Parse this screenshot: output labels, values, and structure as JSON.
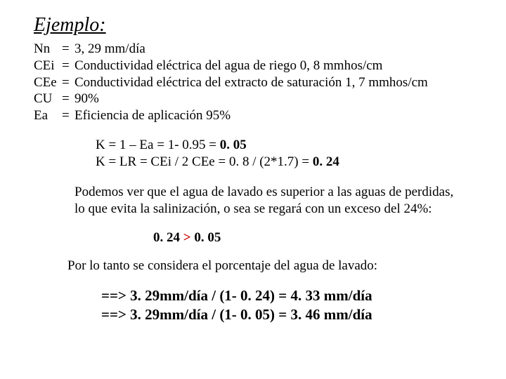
{
  "title": "Ejemplo:",
  "defs": [
    {
      "sym": "Nn",
      "val": "3, 29 mm/día"
    },
    {
      "sym": "CEi",
      "val": "Conductividad eléctrica del agua de riego 0, 8 mmhos/cm"
    },
    {
      "sym": "CEe",
      "val": "Conductividad eléctrica del extracto de saturación 1, 7 mmhos/cm"
    },
    {
      "sym": "CU",
      "val": "90%"
    },
    {
      "sym": "Ea",
      "val": "Eficiencia de aplicación 95%"
    }
  ],
  "calc": {
    "line1_lhs": "K = 1 – Ea  =   1- 0.95    =  ",
    "line1_res": "0. 05",
    "line2_lhs": "K = LR = CEi / 2 CEe    =  0. 8 / (2*1.7)  =  ",
    "line2_res": "0. 24"
  },
  "para": "Podemos ver que el agua de lavado es superior a las aguas de perdidas, lo que evita la salinización, o sea se regará con un exceso del 24%:",
  "ineq": {
    "left": "0. 24 ",
    "gt": " > ",
    "right": " 0. 05"
  },
  "concl": "Por lo tanto se  considera el porcentaje del agua de lavado:",
  "arrows": {
    "l1": "==> 3. 29mm/día  / (1- 0. 24) = 4. 33 mm/día",
    "l2": "==> 3. 29mm/día  / (1- 0. 05) = 3. 46 mm/día"
  }
}
